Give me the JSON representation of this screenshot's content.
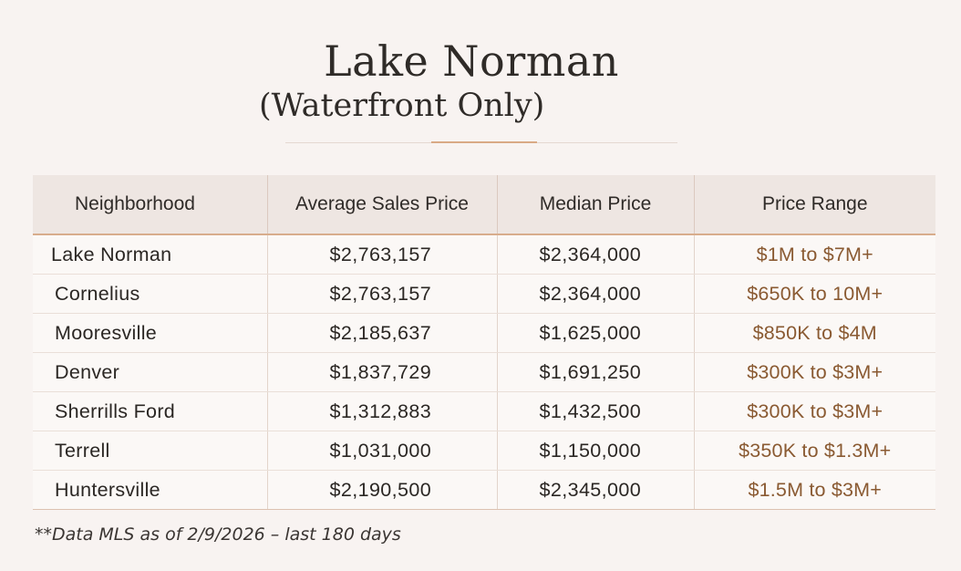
{
  "header": {
    "title": "Lake Norman",
    "subtitle": "(Waterfront Only)"
  },
  "table": {
    "columns": [
      "Neighborhood",
      "Average Sales Price",
      "Median Price",
      "Price Range"
    ],
    "rows": [
      {
        "neighborhood": "Lake Norman",
        "average": "$2,763,157",
        "median": "$2,364,000",
        "range": "$1M to $7M+"
      },
      {
        "neighborhood": "Cornelius",
        "average": "$2,763,157",
        "median": "$2,364,000",
        "range": "$650K to 10M+"
      },
      {
        "neighborhood": "Mooresville",
        "average": "$2,185,637",
        "median": "$1,625,000",
        "range": "$850K to $4M"
      },
      {
        "neighborhood": "Denver",
        "average": "$1,837,729",
        "median": "$1,691,250",
        "range": "$300K to $3M+"
      },
      {
        "neighborhood": "Sherrills Ford",
        "average": "$1,312,883",
        "median": "$1,432,500",
        "range": "$300K to $3M+"
      },
      {
        "neighborhood": "Terrell",
        "average": "$1,031,000",
        "median": "$1,150,000",
        "range": "$350K to $1.3M+"
      },
      {
        "neighborhood": "Huntersville",
        "average": "$2,190,500",
        "median": "$2,345,000",
        "range": "$1.5M to $3M+"
      }
    ]
  },
  "footnote": "**Data MLS as of 2/9/2026 – last 180 days",
  "colors": {
    "background": "#f8f3f1",
    "header_row": "#eee6e2",
    "accent": "#d8ad8c",
    "price_range_text": "#8a5a32"
  }
}
